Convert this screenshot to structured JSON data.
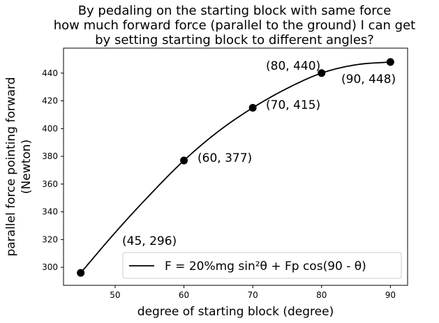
{
  "chart_data": {
    "type": "line",
    "title_lines": [
      "By pedaling on the starting block with same force",
      "how much forward force (parallel to the ground) I can get",
      "by setting starting block to different angles?"
    ],
    "xlabel": "degree of starting block (degree)",
    "ylabel_lines": [
      "parallel force pointing forward",
      "(Newton)"
    ],
    "xlim": [
      42.5,
      92.5
    ],
    "ylim": [
      287,
      458
    ],
    "xticks": [
      50,
      60,
      70,
      80,
      90
    ],
    "yticks": [
      300,
      320,
      340,
      360,
      380,
      400,
      420,
      440
    ],
    "grid": false,
    "legend_position": "bottom-right",
    "series": [
      {
        "name": "F = 20%mg sin²θ + Fp cos(90 - θ)",
        "color": "#000000",
        "curve": {
          "x": [
            45,
            50,
            55,
            60,
            65,
            70,
            75,
            80,
            85,
            90
          ],
          "y": [
            296,
            325,
            352,
            377,
            398,
            415,
            429,
            440,
            446,
            448
          ]
        },
        "points": [
          {
            "x": 45,
            "y": 296,
            "label": "(45, 296)"
          },
          {
            "x": 60,
            "y": 377,
            "label": "(60, 377)"
          },
          {
            "x": 70,
            "y": 415,
            "label": "(70, 415)"
          },
          {
            "x": 80,
            "y": 440,
            "label": "(80, 440)"
          },
          {
            "x": 90,
            "y": 448,
            "label": "(90, 448)"
          }
        ]
      }
    ]
  }
}
